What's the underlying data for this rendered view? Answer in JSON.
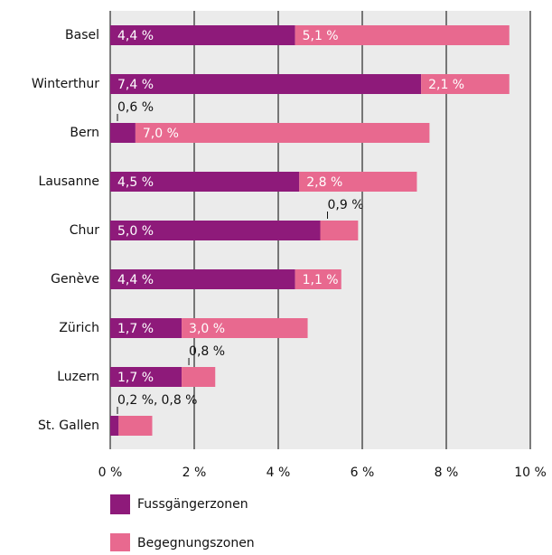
{
  "chart_data": {
    "type": "stacked-bar-horizontal",
    "categories": [
      "Basel",
      "Winterthur",
      "Bern",
      "Lausanne",
      "Chur",
      "Genève",
      "Zürich",
      "Luzern",
      "St. Gallen"
    ],
    "series": [
      {
        "name": "Fussgängerzonen",
        "color": "#8e1a7a",
        "values": [
          4.4,
          7.4,
          0.6,
          4.5,
          5.0,
          4.4,
          1.7,
          1.7,
          0.2
        ],
        "value_labels": [
          "4,4 %",
          "7,4 %",
          "0,6 %",
          "4,5 %",
          "5,0 %",
          "4,4 %",
          "1,7 %",
          "1,7 %",
          "0,2 %,"
        ]
      },
      {
        "name": "Begegnungszonen",
        "color": "#e8698f",
        "values": [
          5.1,
          2.1,
          7.0,
          2.8,
          0.9,
          1.1,
          3.0,
          0.8,
          0.8
        ],
        "value_labels": [
          "5,1 %",
          "2,1 %",
          "7,0 %",
          "2,8 %",
          "0,9 %",
          "1,1 %",
          "3,0 %",
          "0,8 %",
          "0,8 %"
        ]
      }
    ],
    "xlim": [
      0,
      10
    ],
    "xticks": [
      {
        "value": 0,
        "label": "0 %"
      },
      {
        "value": 2,
        "label": "2 %"
      },
      {
        "value": 4,
        "label": "4 %"
      },
      {
        "value": 6,
        "label": "6 %"
      },
      {
        "value": 8,
        "label": "8 %"
      },
      {
        "value": 10,
        "label": "10 %"
      }
    ],
    "grid": true
  }
}
